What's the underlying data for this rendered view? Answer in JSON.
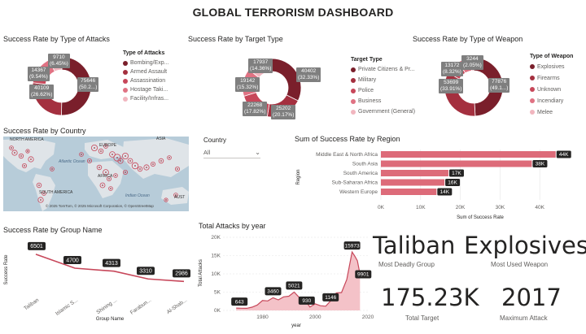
{
  "title": "GLOBAL TERRORISM  DASHBOARD",
  "colors": {
    "dark": "#7a1f2b",
    "mid": "#a4303f",
    "accent": "#c7475a",
    "light": "#e07283",
    "pale": "#f1b6bf",
    "bar": "#dd6b79",
    "area": "#f4c2c8"
  },
  "attack_type": {
    "title": "Success Rate by Type of Attacks",
    "legend_title": "Type of Attacks",
    "legend": [
      "Bombing/Exp...",
      "Armed Assault",
      "Assassination",
      "Hostage Taki...",
      "Facility/Infras..."
    ],
    "labels": [
      {
        "value": "75646",
        "pct": "(50.2...)"
      },
      {
        "value": "40109",
        "pct": "(26.62%)"
      },
      {
        "value": "14367",
        "pct": "(9.54%)"
      },
      {
        "value": "9710",
        "pct": "(6.45%)"
      }
    ],
    "chart_data": {
      "type": "pie",
      "labels": [
        "Bombing/Exp...",
        "Armed Assault",
        "Assassination",
        "Hostage Taki...",
        "Facility/Infras..."
      ],
      "values": [
        75646,
        40109,
        14367,
        9710,
        10800
      ]
    }
  },
  "target_type": {
    "title": "Success Rate by Target Type",
    "legend_title": "Target Type",
    "legend": [
      "Private Citizens & Pr...",
      "Military",
      "Police",
      "Business",
      "Government (General)"
    ],
    "labels": [
      {
        "value": "40402",
        "pct": "(32.33%)"
      },
      {
        "value": "25202",
        "pct": "(20.17%)"
      },
      {
        "value": "22268",
        "pct": "(17.82%)"
      },
      {
        "value": "19142",
        "pct": "(15.32%)"
      },
      {
        "value": "17937",
        "pct": "(14.36%)"
      }
    ],
    "chart_data": {
      "type": "pie",
      "labels": [
        "Private Citizens & Pr...",
        "Military",
        "Police",
        "Business",
        "Government (General)"
      ],
      "values": [
        40402,
        25202,
        22268,
        19142,
        17937
      ]
    }
  },
  "weapon_type": {
    "title": "Success Rate by Type of Weapon",
    "legend_title": "Type of Weapon",
    "legend": [
      "Explosives",
      "Firearms",
      "Unknown",
      "Incendiary",
      "Melee"
    ],
    "labels": [
      {
        "value": "77876",
        "pct": "(49.1...)"
      },
      {
        "value": "53699",
        "pct": "(33.91%)"
      },
      {
        "value": "13172",
        "pct": "(8.32%)"
      },
      {
        "value": "3244",
        "pct": "(2.05%)"
      }
    ],
    "chart_data": {
      "type": "pie",
      "labels": [
        "Explosives",
        "Firearms",
        "Unknown",
        "Incendiary",
        "Melee"
      ],
      "values": [
        77876,
        53699,
        13172,
        10400,
        3244
      ]
    }
  },
  "country_map": {
    "title": "Success Rate by Country",
    "labels": {
      "north_america": "NORTH AMERICA",
      "europe": "EUROPE",
      "asia": "ASIA",
      "africa": "AFRICA",
      "south_america": "SOUTH AMERICA",
      "atlantic": "Atlantic Ocean",
      "indian": "Indian Ocean",
      "aust": "AUST"
    },
    "attribution": "© 2025 TomTom, © 2025 Microsoft Corporation, © OpenStreetMap"
  },
  "country_slicer": {
    "label": "Country",
    "value": "All"
  },
  "region": {
    "title": "Sum of Success Rate by Region",
    "ylabel": "Region",
    "xlabel": "Sum of Success Rate",
    "ticks": [
      "0K",
      "10K",
      "20K",
      "30K",
      "40K"
    ],
    "bar_labels": [
      "44K",
      "38K",
      "17K",
      "16K",
      "14K"
    ],
    "chart_data": {
      "type": "bar",
      "orientation": "horizontal",
      "categories": [
        "Middle East & North Africa",
        "South Asia",
        "South America",
        "Sub-Saharan Africa",
        "Western Europe"
      ],
      "values": [
        44000,
        38000,
        17000,
        16000,
        14000
      ],
      "xlabel": "Sum of Success Rate",
      "ylabel": "Region",
      "xlim": [
        0,
        50000
      ]
    }
  },
  "group": {
    "title": "Success Rate by Group Name",
    "ylabel": "Success Rate",
    "xlabel": "Group Name",
    "categories": [
      "Taliban",
      "Islamic S...",
      "Shining ...",
      "Farabun...",
      "Al-Shab..."
    ],
    "value_labels": [
      "6501",
      "4700",
      "4313",
      "3310",
      "2986"
    ],
    "chart_data": {
      "type": "line",
      "categories": [
        "Taliban",
        "Islamic S...",
        "Shining ...",
        "Farabun...",
        "Al-Shab..."
      ],
      "values": [
        6501,
        4700,
        4313,
        3310,
        2986
      ],
      "xlabel": "Group Name",
      "ylabel": "Success Rate"
    }
  },
  "attacks_year": {
    "title": "Total Attacks by year",
    "ylabel": "Total Attacks",
    "xlabel": "year",
    "yticks": [
      "0K",
      "5K",
      "10K",
      "15K",
      "20K"
    ],
    "xticks": [
      "1980",
      "2000",
      "2020"
    ],
    "value_labels": [
      "643",
      "3460",
      "5021",
      "930",
      "1146",
      "15973",
      "9901"
    ],
    "chart_data": {
      "type": "area",
      "x": [
        1970,
        1972,
        1974,
        1976,
        1978,
        1980,
        1982,
        1984,
        1986,
        1988,
        1990,
        1992,
        1994,
        1996,
        1998,
        2000,
        2002,
        2004,
        2006,
        2008,
        2010,
        2012,
        2014,
        2015,
        2016,
        2017
      ],
      "values": [
        643,
        600,
        580,
        900,
        1500,
        2700,
        2600,
        3460,
        2900,
        3700,
        3900,
        5021,
        3500,
        3000,
        930,
        1800,
        1300,
        1146,
        2700,
        4800,
        4900,
        8500,
        15973,
        14900,
        13600,
        9901
      ],
      "xlabel": "year",
      "ylabel": "Total Attacks",
      "ylim": [
        0,
        20000
      ],
      "xlim": [
        1965,
        2020
      ]
    }
  },
  "kpis": [
    {
      "value": "Taliban",
      "label": "Most Deadly Group"
    },
    {
      "value": "Explosives",
      "label": "Most Used Weapon"
    },
    {
      "value": "175.23K",
      "label": "Total Target"
    },
    {
      "value": "2017",
      "label": "Maximum Attack"
    }
  ]
}
